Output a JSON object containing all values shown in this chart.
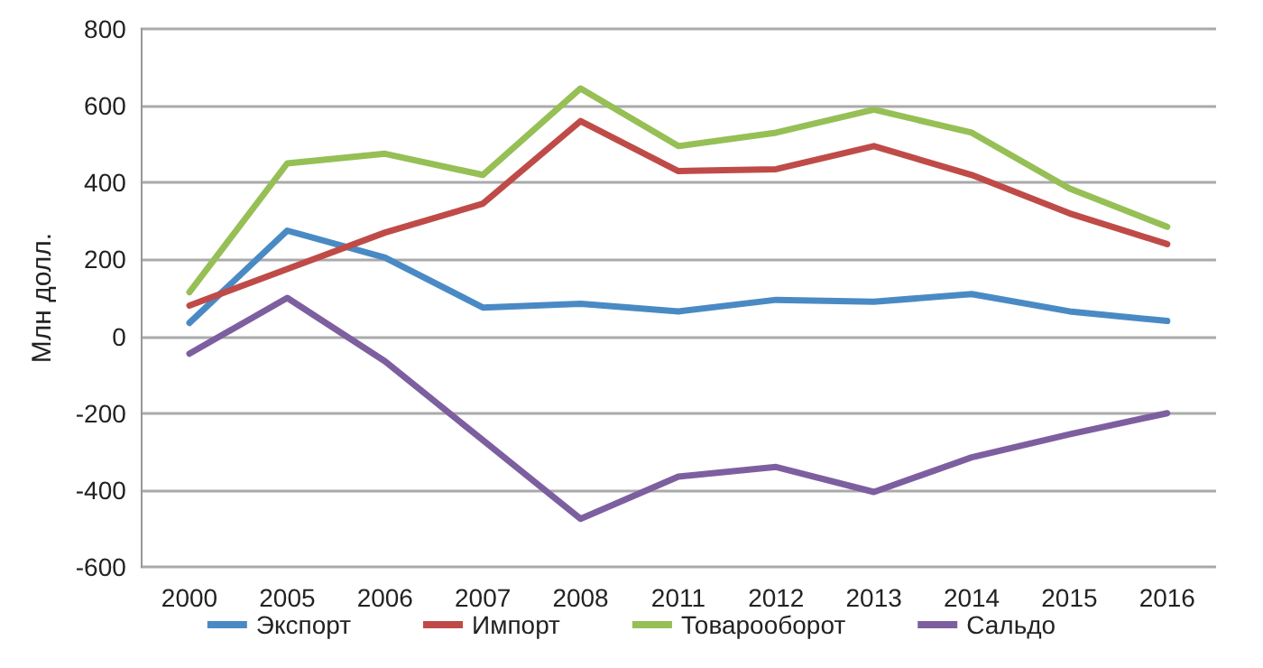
{
  "chart_data": {
    "type": "line",
    "ylabel": "Млн долл.",
    "categories": [
      "2000",
      "2005",
      "2006",
      "2007",
      "2008",
      "2011",
      "2012",
      "2013",
      "2014",
      "2015",
      "2016"
    ],
    "series": [
      {
        "name": "Экспорт",
        "color": "#4a8ac4",
        "values": [
          35,
          275,
          205,
          75,
          85,
          65,
          95,
          90,
          110,
          65,
          40
        ]
      },
      {
        "name": "Импорт",
        "color": "#bf4b48",
        "values": [
          80,
          175,
          270,
          345,
          560,
          430,
          435,
          495,
          420,
          320,
          240
        ]
      },
      {
        "name": "Товарооборот",
        "color": "#96bf55",
        "values": [
          115,
          450,
          475,
          420,
          645,
          495,
          530,
          590,
          530,
          385,
          285
        ]
      },
      {
        "name": "Сальдо",
        "color": "#7d5fa0",
        "values": [
          -45,
          100,
          -65,
          -270,
          -475,
          -365,
          -340,
          -405,
          -315,
          -255,
          -200
        ]
      }
    ],
    "ylim": [
      -600,
      800
    ],
    "yticks": [
      -600,
      -400,
      -200,
      0,
      200,
      400,
      600,
      800
    ],
    "grid": "y",
    "legend": "bottom",
    "marker": "none",
    "line_style": "solid"
  }
}
